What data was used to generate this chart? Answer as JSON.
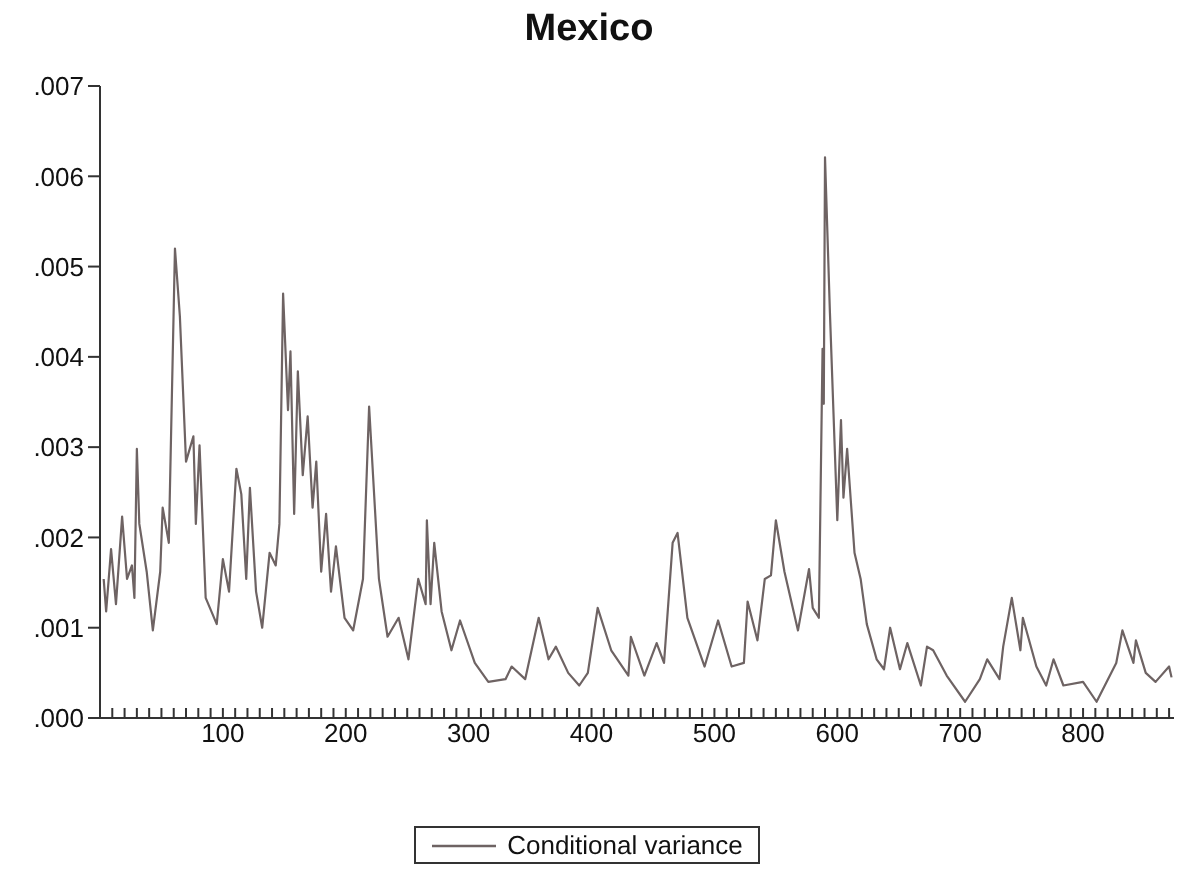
{
  "chart_data": {
    "type": "line",
    "title": "Mexico",
    "x": [
      3,
      5,
      9,
      13,
      18,
      22,
      26,
      28,
      30,
      32,
      38,
      43,
      49,
      51,
      56,
      61,
      65,
      70,
      76,
      78,
      81,
      86,
      95,
      100,
      105,
      111,
      115,
      119,
      122,
      127,
      132,
      138,
      143,
      146,
      149,
      153,
      155,
      158,
      161,
      165,
      169,
      173,
      176,
      180,
      184,
      188,
      192,
      199,
      206,
      214,
      219,
      227,
      234,
      243,
      251,
      259,
      265,
      266,
      269,
      272,
      278,
      286,
      293,
      305,
      316,
      330,
      335,
      346,
      357,
      365,
      371,
      381,
      390,
      397,
      405,
      416,
      430,
      432,
      443,
      453,
      459,
      466,
      470,
      478,
      492,
      503,
      514,
      524,
      527,
      535,
      541,
      546,
      550,
      557,
      568,
      577,
      580,
      585,
      588,
      589,
      590,
      594,
      600,
      603,
      605,
      608,
      614,
      619,
      624,
      632,
      638,
      643,
      651,
      657,
      668,
      673,
      678,
      689,
      704,
      716,
      722,
      732,
      735,
      742,
      749,
      751,
      762,
      770,
      776,
      784,
      800,
      811,
      827,
      832,
      841,
      843,
      851,
      859,
      870,
      872
    ],
    "series": [
      {
        "name": "Conditional variance",
        "color": "#6e6363",
        "values": [
          0.00154,
          0.00118,
          0.00187,
          0.00126,
          0.00223,
          0.00154,
          0.00169,
          0.00133,
          0.00298,
          0.00215,
          0.00162,
          0.00097,
          0.00162,
          0.00233,
          0.00194,
          0.0052,
          0.00445,
          0.00284,
          0.00312,
          0.00215,
          0.00302,
          0.00133,
          0.00104,
          0.00176,
          0.0014,
          0.00276,
          0.00248,
          0.00154,
          0.00255,
          0.0014,
          0.001,
          0.00183,
          0.00169,
          0.00215,
          0.0047,
          0.00341,
          0.00406,
          0.00226,
          0.00384,
          0.00269,
          0.00334,
          0.00233,
          0.00284,
          0.00162,
          0.00226,
          0.0014,
          0.0019,
          0.00111,
          0.00097,
          0.00154,
          0.00345,
          0.00154,
          0.0009,
          0.00111,
          0.00065,
          0.00154,
          0.00126,
          0.00219,
          0.00126,
          0.00194,
          0.00118,
          0.00075,
          0.00108,
          0.00061,
          0.0004,
          0.00043,
          0.00057,
          0.00043,
          0.00111,
          0.00065,
          0.00079,
          0.0005,
          0.00036,
          0.0005,
          0.00122,
          0.00075,
          0.00047,
          0.0009,
          0.00047,
          0.00083,
          0.00061,
          0.00194,
          0.00205,
          0.00111,
          0.00057,
          0.00108,
          0.00057,
          0.00061,
          0.00129,
          0.00086,
          0.00154,
          0.00158,
          0.00219,
          0.00162,
          0.00097,
          0.00165,
          0.00122,
          0.00111,
          0.00409,
          0.00348,
          0.00621,
          0.00449,
          0.00219,
          0.0033,
          0.00244,
          0.00298,
          0.00183,
          0.00154,
          0.00104,
          0.00065,
          0.00054,
          0.001,
          0.00054,
          0.00083,
          0.00036,
          0.00079,
          0.00075,
          0.00047,
          0.00018,
          0.00043,
          0.00065,
          0.00043,
          0.00079,
          0.00133,
          0.00075,
          0.00111,
          0.00057,
          0.00036,
          0.00065,
          0.00036,
          0.0004,
          0.00018,
          0.00061,
          0.00097,
          0.00061,
          0.00086,
          0.0005,
          0.0004,
          0.00057,
          0.00045
        ]
      }
    ],
    "xlim": [
      0,
      874
    ],
    "xticks": [
      {
        "value": 10,
        "label": null
      },
      {
        "value": 20,
        "label": null
      },
      {
        "value": 30,
        "label": null
      },
      {
        "value": 40,
        "label": null
      },
      {
        "value": 50,
        "label": null
      },
      {
        "value": 60,
        "label": null
      },
      {
        "value": 70,
        "label": null
      },
      {
        "value": 80,
        "label": null
      },
      {
        "value": 90,
        "label": null
      },
      100,
      {
        "value": 110,
        "label": null
      },
      {
        "value": 120,
        "label": null
      },
      {
        "value": 130,
        "label": null
      },
      {
        "value": 140,
        "label": null
      },
      {
        "value": 150,
        "label": null
      },
      {
        "value": 160,
        "label": null
      },
      {
        "value": 170,
        "label": null
      },
      {
        "value": 180,
        "label": null
      },
      {
        "value": 190,
        "label": null
      },
      200,
      {
        "value": 210,
        "label": null
      },
      {
        "value": 220,
        "label": null
      },
      {
        "value": 230,
        "label": null
      },
      {
        "value": 240,
        "label": null
      },
      {
        "value": 250,
        "label": null
      },
      {
        "value": 260,
        "label": null
      },
      {
        "value": 270,
        "label": null
      },
      {
        "value": 280,
        "label": null
      },
      {
        "value": 290,
        "label": null
      },
      300,
      {
        "value": 310,
        "label": null
      },
      {
        "value": 320,
        "label": null
      },
      {
        "value": 330,
        "label": null
      },
      {
        "value": 340,
        "label": null
      },
      {
        "value": 350,
        "label": null
      },
      {
        "value": 360,
        "label": null
      },
      {
        "value": 370,
        "label": null
      },
      {
        "value": 380,
        "label": null
      },
      {
        "value": 390,
        "label": null
      },
      400,
      {
        "value": 410,
        "label": null
      },
      {
        "value": 420,
        "label": null
      },
      {
        "value": 430,
        "label": null
      },
      {
        "value": 440,
        "label": null
      },
      {
        "value": 450,
        "label": null
      },
      {
        "value": 460,
        "label": null
      },
      {
        "value": 470,
        "label": null
      },
      {
        "value": 480,
        "label": null
      },
      {
        "value": 490,
        "label": null
      },
      500,
      {
        "value": 510,
        "label": null
      },
      {
        "value": 520,
        "label": null
      },
      {
        "value": 530,
        "label": null
      },
      {
        "value": 540,
        "label": null
      },
      {
        "value": 550,
        "label": null
      },
      {
        "value": 560,
        "label": null
      },
      {
        "value": 570,
        "label": null
      },
      {
        "value": 580,
        "label": null
      },
      {
        "value": 590,
        "label": null
      },
      600,
      {
        "value": 610,
        "label": null
      },
      {
        "value": 620,
        "label": null
      },
      {
        "value": 630,
        "label": null
      },
      {
        "value": 640,
        "label": null
      },
      {
        "value": 650,
        "label": null
      },
      {
        "value": 660,
        "label": null
      },
      {
        "value": 670,
        "label": null
      },
      {
        "value": 680,
        "label": null
      },
      {
        "value": 690,
        "label": null
      },
      700,
      {
        "value": 710,
        "label": null
      },
      {
        "value": 720,
        "label": null
      },
      {
        "value": 730,
        "label": null
      },
      {
        "value": 740,
        "label": null
      },
      {
        "value": 750,
        "label": null
      },
      {
        "value": 760,
        "label": null
      },
      {
        "value": 770,
        "label": null
      },
      {
        "value": 780,
        "label": null
      },
      {
        "value": 790,
        "label": null
      },
      800,
      {
        "value": 810,
        "label": null
      },
      {
        "value": 820,
        "label": null
      },
      {
        "value": 830,
        "label": null
      },
      {
        "value": 840,
        "label": null
      },
      {
        "value": 850,
        "label": null
      },
      {
        "value": 860,
        "label": null
      },
      {
        "value": 870,
        "label": null
      }
    ],
    "ylim": [
      0,
      0.007
    ],
    "yticks": [
      {
        "value": 0,
        "label": ".000"
      },
      {
        "value": 0.001,
        "label": ".001"
      },
      {
        "value": 0.002,
        "label": ".002"
      },
      {
        "value": 0.003,
        "label": ".003"
      },
      {
        "value": 0.004,
        "label": ".004"
      },
      {
        "value": 0.005,
        "label": ".005"
      },
      {
        "value": 0.006,
        "label": ".006"
      },
      {
        "value": 0.007,
        "label": ".007"
      }
    ],
    "grid": false,
    "legend": "bottom",
    "marker": "none",
    "line_style": "solid"
  }
}
